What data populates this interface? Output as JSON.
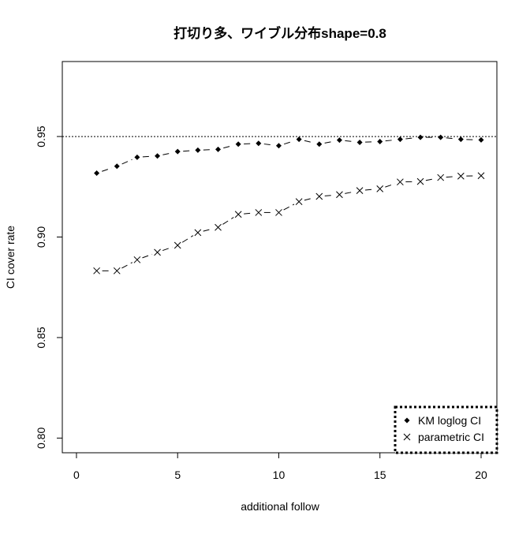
{
  "chart_data": {
    "type": "line",
    "title": "打切り多、ワイブル分布shape=0.8",
    "xlabel": "additional follow",
    "ylabel": "CI cover rate",
    "xlim": [
      -0.7,
      20.78
    ],
    "ylim": [
      0.7927,
      0.9873
    ],
    "x_ticks": [
      0,
      5,
      10,
      15,
      20
    ],
    "x_tick_labels": [
      "0",
      "5",
      "10",
      "15",
      "20"
    ],
    "y_ticks": [
      0.8,
      0.85,
      0.9,
      0.95
    ],
    "y_tick_labels": [
      "0.80",
      "0.85",
      "0.90",
      "0.95"
    ],
    "grid": false,
    "reference_line": {
      "y": 0.95,
      "style": "dotted"
    },
    "legend_position": "bottom-right",
    "x": [
      1,
      2,
      3,
      4,
      5,
      6,
      7,
      8,
      9,
      10,
      11,
      12,
      13,
      14,
      15,
      16,
      17,
      18,
      19,
      20
    ],
    "series": [
      {
        "name": "KM loglog CI",
        "marker": "diamond",
        "line": "dashed",
        "values": [
          0.9318,
          0.9352,
          0.9397,
          0.9403,
          0.9425,
          0.9432,
          0.9436,
          0.9462,
          0.9466,
          0.9454,
          0.9486,
          0.9462,
          0.9482,
          0.9471,
          0.9475,
          0.9486,
          0.9496,
          0.9496,
          0.9486,
          0.9483
        ]
      },
      {
        "name": "parametric CI",
        "marker": "x",
        "line": "dashed",
        "values": [
          0.8832,
          0.8832,
          0.8887,
          0.8924,
          0.8959,
          0.9022,
          0.9048,
          0.9113,
          0.9122,
          0.9122,
          0.9176,
          0.9202,
          0.9211,
          0.9231,
          0.924,
          0.9274,
          0.9276,
          0.9296,
          0.9303,
          0.9305
        ]
      }
    ]
  }
}
